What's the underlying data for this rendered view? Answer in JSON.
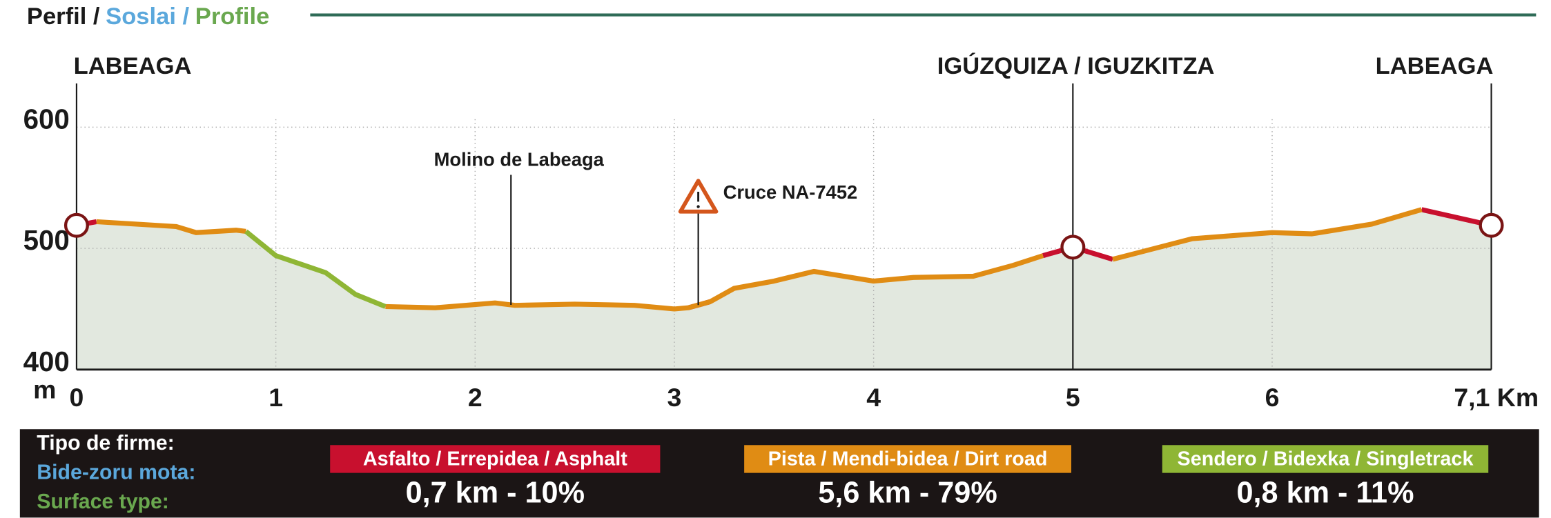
{
  "chart_data": {
    "type": "elevation-profile",
    "title": [
      {
        "text": "Perfil /",
        "color": "#1a1a1a"
      },
      {
        "text": "Soslai /",
        "color": "#5ba8dc"
      },
      {
        "text": "Profile",
        "color": "#6aa84f"
      }
    ],
    "y_unit": "m",
    "x": [
      0,
      0.1,
      0.3,
      0.5,
      0.6,
      0.8,
      0.85,
      1.0,
      1.25,
      1.4,
      1.55,
      1.8,
      2.1,
      2.2,
      2.5,
      2.8,
      3.0,
      3.07,
      3.18,
      3.3,
      3.5,
      3.7,
      4.0,
      4.2,
      4.5,
      4.7,
      4.85,
      5.0,
      5.2,
      5.6,
      6.0,
      6.2,
      6.5,
      6.75,
      7.1
    ],
    "series": [
      {
        "name": "Asfalto / Errepidea / Asphalt",
        "summary": "0,7 km - 10%",
        "color": "#c8102e",
        "values": [
          519,
          522,
          null,
          null,
          null,
          null,
          null,
          null,
          null,
          null,
          null,
          null,
          null,
          null,
          null,
          null,
          null,
          451,
          456,
          null,
          null,
          null,
          null,
          null,
          null,
          null,
          494,
          501,
          491,
          null,
          null,
          null,
          null,
          532,
          519
        ]
      },
      {
        "name": "Pista / Mendi-bidea / Dirt road",
        "summary": "5,6 km - 79%",
        "color": "#e08c14",
        "values": [
          null,
          522,
          520,
          518,
          513,
          515,
          514,
          null,
          null,
          null,
          452,
          451,
          455,
          453,
          454,
          453,
          450,
          451,
          456,
          467,
          473,
          481,
          473,
          476,
          477,
          486,
          494,
          null,
          491,
          508,
          513,
          512,
          520,
          532,
          null
        ]
      },
      {
        "name": "Sendero / Bidexka / Singletrack",
        "summary": "0,8 km - 11%",
        "color": "#8fb635",
        "values": [
          null,
          null,
          null,
          null,
          null,
          null,
          514,
          494,
          480,
          462,
          452,
          null,
          null,
          null,
          null,
          null,
          null,
          null,
          null,
          null,
          null,
          null,
          null,
          null,
          null,
          null,
          null,
          null,
          null,
          null,
          null,
          null,
          null,
          null,
          null
        ]
      }
    ],
    "places": [
      {
        "label": "LABEAGA",
        "x": 0
      },
      {
        "label": "IGÚZQUIZA / IGUZKITZA",
        "x": 5
      },
      {
        "label": "LABEAGA",
        "x": 7.1
      }
    ],
    "annotations": [
      {
        "text": "Molino de Labeaga",
        "x": 2.18
      },
      {
        "text": "Cruce NA-7452",
        "x": 3.12,
        "warning": true
      }
    ],
    "xlim": [
      0,
      7.1
    ],
    "xticks": [
      0,
      1,
      2,
      3,
      4,
      5,
      6,
      {
        "value": 7.1,
        "label": "7,1 Km"
      }
    ],
    "ylim": [
      400,
      600
    ],
    "yticks": [
      400,
      500,
      600
    ],
    "grid": true,
    "legend_title": [
      {
        "text": "Tipo de firme:",
        "color": "#ffffff"
      },
      {
        "text": "Bide-zoru mota:",
        "color": "#5ba8dc"
      },
      {
        "text": "Surface type:",
        "color": "#6aa84f"
      }
    ]
  }
}
